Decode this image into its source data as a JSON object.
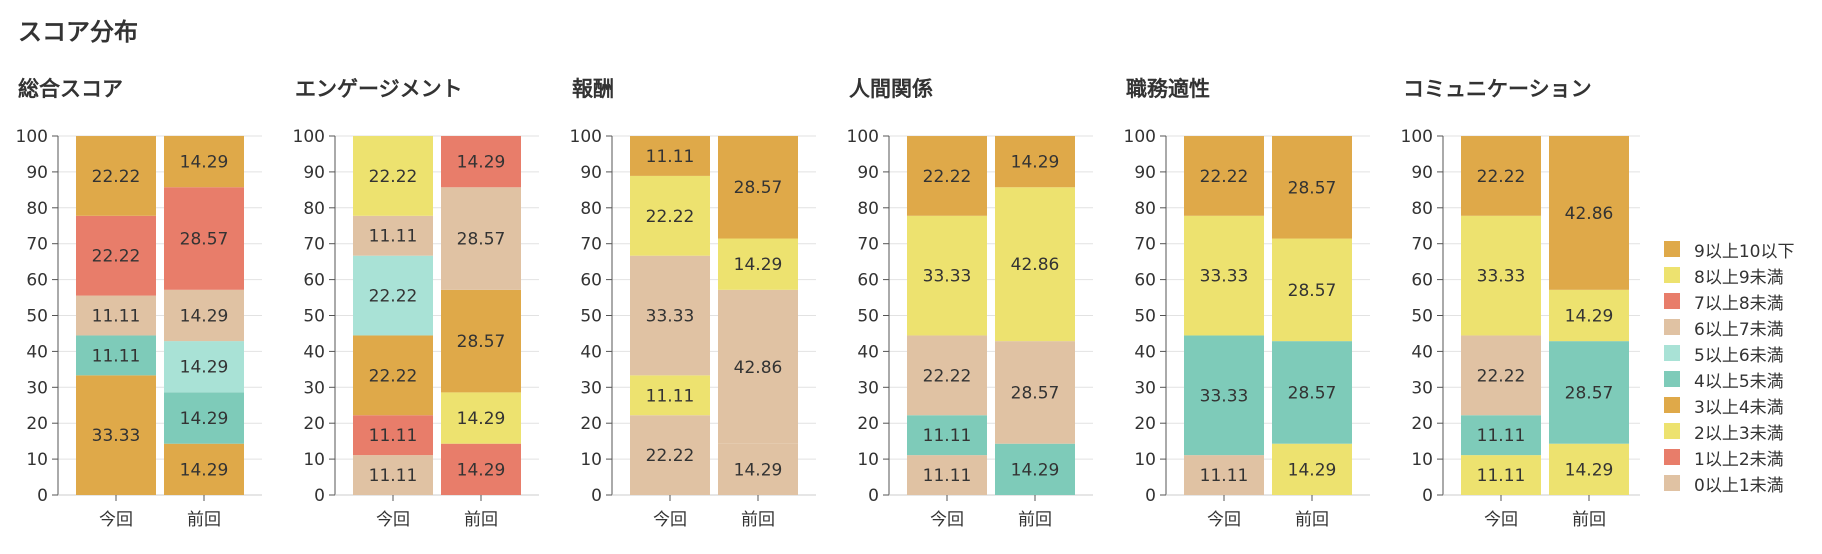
{
  "page": {
    "title": "スコア分布"
  },
  "legend": {
    "items": [
      {
        "label": "9以上10以下",
        "color": "#DFA949"
      },
      {
        "label": "8以上9未満",
        "color": "#EDE26F"
      },
      {
        "label": "7以上8未満",
        "color": "#E87D6A"
      },
      {
        "label": "6以上7未満",
        "color": "#E0C2A3"
      },
      {
        "label": "5以上6未満",
        "color": "#A9E2D6"
      },
      {
        "label": "4以上5未満",
        "color": "#7ECBB9"
      },
      {
        "label": "3以上4未満",
        "color": "#DFA949"
      },
      {
        "label": "2以上3未満",
        "color": "#EDE26F"
      },
      {
        "label": "1以上2未満",
        "color": "#E87D6A"
      },
      {
        "label": "0以上1未満",
        "color": "#E0C2A3"
      }
    ]
  },
  "chart_data": [
    {
      "type": "bar",
      "stacked": true,
      "title": "総合スコア",
      "categories": [
        "今回",
        "前回"
      ],
      "ylim": [
        0,
        100
      ],
      "yticks": [
        "0",
        "10",
        "20",
        "30",
        "40",
        "50",
        "60",
        "70",
        "80",
        "90",
        "100"
      ],
      "grid": true,
      "stacks": [
        [
          {
            "band": 6,
            "value": 33.33,
            "label": "33.33"
          },
          {
            "band": 5,
            "value": 11.11,
            "label": "11.11"
          },
          {
            "band": 3,
            "value": 11.11,
            "label": "11.11"
          },
          {
            "band": 2,
            "value": 22.22,
            "label": "22.22"
          },
          {
            "band": 0,
            "value": 22.22,
            "label": "22.22"
          }
        ],
        [
          {
            "band": 6,
            "value": 14.29,
            "label": "14.29"
          },
          {
            "band": 5,
            "value": 14.29,
            "label": "14.29"
          },
          {
            "band": 4,
            "value": 14.29,
            "label": "14.29"
          },
          {
            "band": 3,
            "value": 14.29,
            "label": "14.29"
          },
          {
            "band": 2,
            "value": 28.57,
            "label": "28.57"
          },
          {
            "band": 0,
            "value": 14.29,
            "label": "14.29"
          }
        ]
      ]
    },
    {
      "type": "bar",
      "stacked": true,
      "title": "エンゲージメント",
      "categories": [
        "今回",
        "前回"
      ],
      "ylim": [
        0,
        100
      ],
      "yticks": [
        "0",
        "10",
        "20",
        "30",
        "40",
        "50",
        "60",
        "70",
        "80",
        "90",
        "100"
      ],
      "grid": true,
      "stacks": [
        [
          {
            "band": 9,
            "value": 11.11,
            "label": "11.11"
          },
          {
            "band": 8,
            "value": 11.11,
            "label": "11.11"
          },
          {
            "band": 6,
            "value": 22.22,
            "label": "22.22"
          },
          {
            "band": 4,
            "value": 22.22,
            "label": "22.22"
          },
          {
            "band": 3,
            "value": 11.11,
            "label": "11.11"
          },
          {
            "band": 1,
            "value": 22.22,
            "label": "22.22"
          }
        ],
        [
          {
            "band": 8,
            "value": 14.29,
            "label": "14.29"
          },
          {
            "band": 7,
            "value": 14.29,
            "label": "14.29"
          },
          {
            "band": 6,
            "value": 28.57,
            "label": "28.57"
          },
          {
            "band": 3,
            "value": 28.57,
            "label": "28.57"
          },
          {
            "band": 2,
            "value": 14.29,
            "label": "14.29"
          }
        ]
      ]
    },
    {
      "type": "bar",
      "stacked": true,
      "title": "報酬",
      "categories": [
        "今回",
        "前回"
      ],
      "ylim": [
        0,
        100
      ],
      "yticks": [
        "0",
        "10",
        "20",
        "30",
        "40",
        "50",
        "60",
        "70",
        "80",
        "90",
        "100"
      ],
      "grid": true,
      "stacks": [
        [
          {
            "band": 9,
            "value": 22.22,
            "label": "22.22"
          },
          {
            "band": 7,
            "value": 11.11,
            "label": "11.11"
          },
          {
            "band": 3,
            "value": 33.33,
            "label": "33.33"
          },
          {
            "band": 1,
            "value": 22.22,
            "label": "22.22"
          },
          {
            "band": 0,
            "value": 11.11,
            "label": "11.11"
          }
        ],
        [
          {
            "band": 9,
            "value": 14.29,
            "label": "14.29"
          },
          {
            "band": 3,
            "value": 42.86,
            "label": "42.86"
          },
          {
            "band": 1,
            "value": 14.29,
            "label": "14.29"
          },
          {
            "band": 0,
            "value": 28.57,
            "label": "28.57"
          }
        ]
      ]
    },
    {
      "type": "bar",
      "stacked": true,
      "title": "人間関係",
      "categories": [
        "今回",
        "前回"
      ],
      "ylim": [
        0,
        100
      ],
      "yticks": [
        "0",
        "10",
        "20",
        "30",
        "40",
        "50",
        "60",
        "70",
        "80",
        "90",
        "100"
      ],
      "grid": true,
      "stacks": [
        [
          {
            "band": 9,
            "value": 11.11,
            "label": "11.11"
          },
          {
            "band": 5,
            "value": 11.11,
            "label": "11.11"
          },
          {
            "band": 3,
            "value": 22.22,
            "label": "22.22"
          },
          {
            "band": 1,
            "value": 33.33,
            "label": "33.33"
          },
          {
            "band": 0,
            "value": 22.22,
            "label": "22.22"
          }
        ],
        [
          {
            "band": 5,
            "value": 14.29,
            "label": "14.29"
          },
          {
            "band": 3,
            "value": 28.57,
            "label": "28.57"
          },
          {
            "band": 1,
            "value": 42.86,
            "label": "42.86"
          },
          {
            "band": 0,
            "value": 14.29,
            "label": "14.29"
          }
        ]
      ]
    },
    {
      "type": "bar",
      "stacked": true,
      "title": "職務適性",
      "categories": [
        "今回",
        "前回"
      ],
      "ylim": [
        0,
        100
      ],
      "yticks": [
        "0",
        "10",
        "20",
        "30",
        "40",
        "50",
        "60",
        "70",
        "80",
        "90",
        "100"
      ],
      "grid": true,
      "stacks": [
        [
          {
            "band": 9,
            "value": 11.11,
            "label": "11.11"
          },
          {
            "band": 5,
            "value": 33.33,
            "label": "33.33"
          },
          {
            "band": 1,
            "value": 33.33,
            "label": "33.33"
          },
          {
            "band": 0,
            "value": 22.22,
            "label": "22.22"
          }
        ],
        [
          {
            "band": 7,
            "value": 14.29,
            "label": "14.29"
          },
          {
            "band": 5,
            "value": 28.57,
            "label": "28.57"
          },
          {
            "band": 1,
            "value": 28.57,
            "label": "28.57"
          },
          {
            "band": 0,
            "value": 28.57,
            "label": "28.57"
          }
        ]
      ]
    },
    {
      "type": "bar",
      "stacked": true,
      "title": "コミュニケーション",
      "categories": [
        "今回",
        "前回"
      ],
      "ylim": [
        0,
        100
      ],
      "yticks": [
        "0",
        "10",
        "20",
        "30",
        "40",
        "50",
        "60",
        "70",
        "80",
        "90",
        "100"
      ],
      "grid": true,
      "stacks": [
        [
          {
            "band": 7,
            "value": 11.11,
            "label": "11.11"
          },
          {
            "band": 5,
            "value": 11.11,
            "label": "11.11"
          },
          {
            "band": 3,
            "value": 22.22,
            "label": "22.22"
          },
          {
            "band": 1,
            "value": 33.33,
            "label": "33.33"
          },
          {
            "band": 0,
            "value": 22.22,
            "label": "22.22"
          }
        ],
        [
          {
            "band": 7,
            "value": 14.29,
            "label": "14.29"
          },
          {
            "band": 5,
            "value": 28.57,
            "label": "28.57"
          },
          {
            "band": 1,
            "value": 14.29,
            "label": "14.29"
          },
          {
            "band": 0,
            "value": 42.86,
            "label": "42.86"
          }
        ]
      ]
    }
  ]
}
